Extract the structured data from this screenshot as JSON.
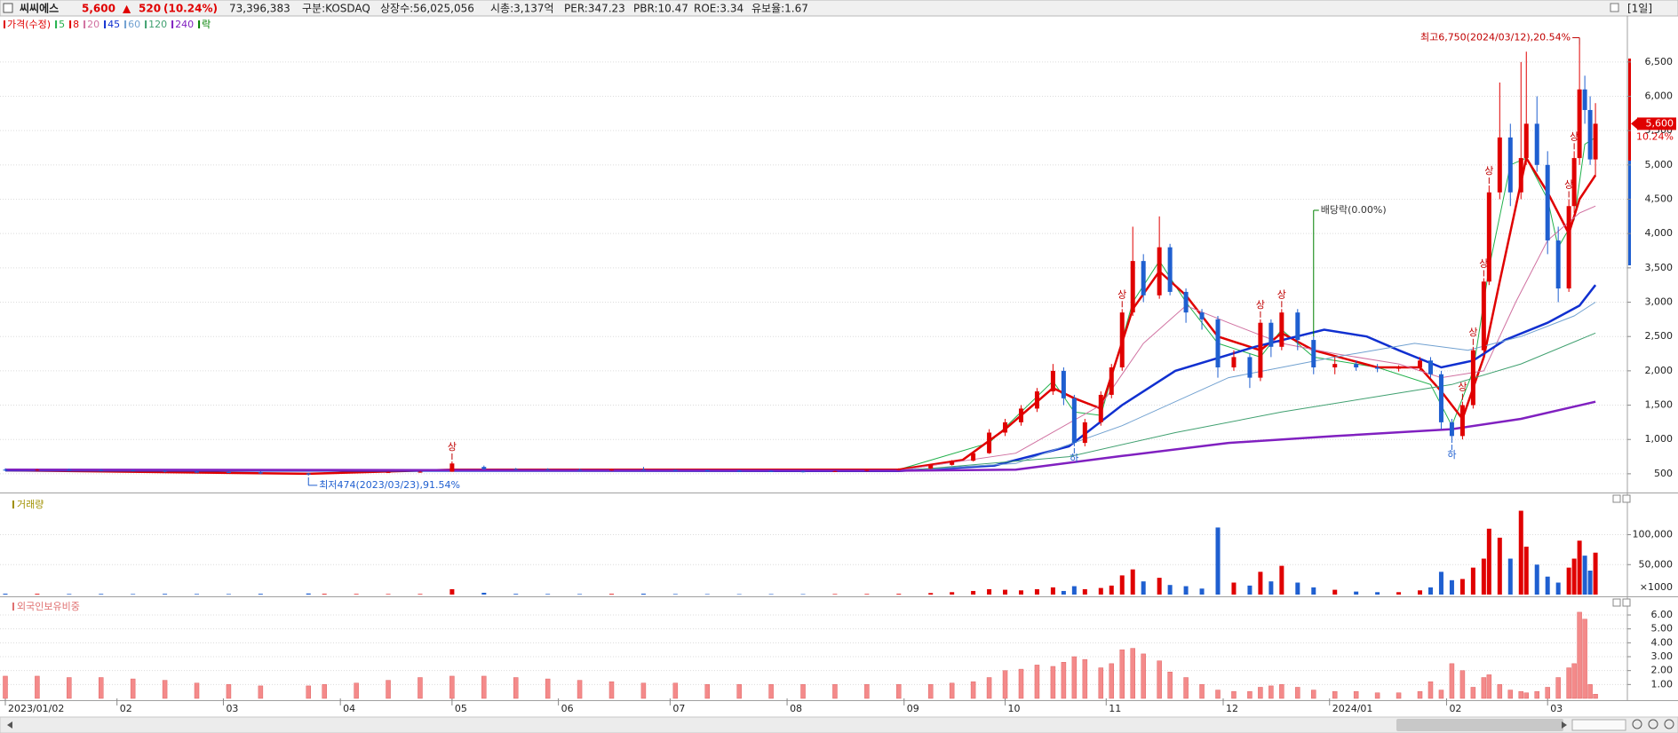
{
  "header": {
    "name": "씨씨에스",
    "price": "5,600",
    "change_arrow": "▲",
    "change": "520",
    "change_pct": "(10.24%)",
    "volume": "73,396,383",
    "market": "구분:KOSDAQ",
    "shares": "상장수:56,025,056",
    "market_cap": "시총:3,137억",
    "per": "PER:347.23",
    "pbr": "PBR:10.47",
    "roe": "ROE:3.34",
    "reserve_ratio": "유보율:1.67",
    "period": "[1일]",
    "price_tag_pct": "10.24%"
  },
  "chart_data": [
    {
      "type": "candlestick",
      "price_label": "가격(수정)",
      "color_up": "#e00000",
      "color_down": "#1f5fd0",
      "lock_legend": {
        "name": "락",
        "color": "#008000"
      },
      "xlim": [
        -1,
        305
      ],
      "ylim": [
        240,
        7170
      ],
      "grid": true,
      "yticks": [
        500,
        {
          "value": 1000,
          "label": "1,000"
        },
        {
          "value": 1500,
          "label": "1,500"
        },
        {
          "value": 2000,
          "label": "2,000"
        },
        {
          "value": 2500,
          "label": "2,500"
        },
        {
          "value": 3000,
          "label": "3,000"
        },
        {
          "value": 3500,
          "label": "3,500"
        },
        {
          "value": 4000,
          "label": "4,000"
        },
        {
          "value": 4500,
          "label": "4,500"
        },
        {
          "value": 5000,
          "label": "5,000"
        },
        {
          "value": 5500,
          "label": "5,500"
        },
        {
          "value": 6000,
          "label": "6,000"
        },
        {
          "value": 6500,
          "label": "6,500"
        }
      ],
      "xticks": [
        {
          "value": 0,
          "label": "2023/01/02"
        },
        {
          "value": 21,
          "label": "02"
        },
        {
          "value": 41,
          "label": "03"
        },
        {
          "value": 63,
          "label": "04"
        },
        {
          "value": 84,
          "label": "05"
        },
        {
          "value": 104,
          "label": "06"
        },
        {
          "value": 125,
          "label": "07"
        },
        {
          "value": 147,
          "label": "08"
        },
        {
          "value": 169,
          "label": "09"
        },
        {
          "value": 188,
          "label": "10"
        },
        {
          "value": 207,
          "label": "11"
        },
        {
          "value": 229,
          "label": "12"
        },
        {
          "value": 249,
          "label": "2024/01"
        },
        {
          "value": 271,
          "label": "02"
        },
        {
          "value": 290,
          "label": "03"
        }
      ],
      "x": [
        0,
        6,
        12,
        18,
        24,
        30,
        36,
        42,
        48,
        57,
        60,
        66,
        72,
        78,
        84,
        90,
        96,
        102,
        108,
        114,
        120,
        126,
        132,
        138,
        144,
        150,
        156,
        162,
        168,
        174,
        178,
        182,
        185,
        188,
        191,
        194,
        197,
        199,
        201,
        203,
        206,
        208,
        210,
        212,
        214,
        217,
        219,
        222,
        225,
        228,
        231,
        234,
        236,
        238,
        240,
        243,
        246,
        250,
        254,
        258,
        262,
        266,
        268,
        270,
        272,
        274,
        276,
        278,
        279,
        281,
        283,
        285,
        286,
        288,
        290,
        292,
        294,
        295,
        296,
        297,
        298,
        299
      ],
      "open": [
        560,
        550,
        560,
        555,
        550,
        545,
        530,
        525,
        520,
        505,
        500,
        515,
        520,
        525,
        530,
        600,
        570,
        565,
        560,
        555,
        560,
        555,
        550,
        545,
        540,
        535,
        530,
        540,
        555,
        575,
        630,
        690,
        800,
        1100,
        1250,
        1450,
        1700,
        2000,
        1600,
        950,
        1250,
        1650,
        2050,
        2850,
        3600,
        3100,
        3800,
        3150,
        2850,
        2750,
        2050,
        2200,
        1900,
        2700,
        2350,
        2850,
        2450,
        2050,
        2100,
        2050,
        2030,
        2050,
        2150,
        1950,
        1250,
        1050,
        1500,
        2300,
        3300,
        4600,
        5400,
        4600,
        5100,
        5600,
        5000,
        3900,
        3200,
        4400,
        5100,
        6100,
        5800,
        5080
      ],
      "high": [
        580,
        570,
        575,
        565,
        560,
        555,
        545,
        540,
        530,
        515,
        520,
        530,
        535,
        540,
        680,
        620,
        585,
        580,
        575,
        570,
        600,
        565,
        560,
        555,
        550,
        545,
        545,
        560,
        580,
        640,
        700,
        820,
        1150,
        1300,
        1500,
        1750,
        2100,
        2050,
        1650,
        1300,
        1700,
        2100,
        2900,
        4100,
        3700,
        4250,
        3850,
        3200,
        2900,
        2800,
        2300,
        2250,
        2750,
        2750,
        2900,
        2900,
        2500,
        2200,
        2150,
        2100,
        2080,
        2200,
        2200,
        2000,
        1300,
        1550,
        2350,
        3350,
        4700,
        6200,
        5600,
        6500,
        6650,
        6000,
        5200,
        4100,
        4500,
        5200,
        6750,
        6300,
        6000,
        5900
      ],
      "low": [
        540,
        540,
        545,
        540,
        535,
        520,
        515,
        510,
        495,
        474,
        495,
        505,
        510,
        515,
        530,
        560,
        555,
        550,
        545,
        545,
        550,
        540,
        535,
        530,
        525,
        520,
        525,
        535,
        550,
        570,
        620,
        680,
        790,
        1050,
        1200,
        1400,
        1650,
        1500,
        900,
        900,
        1200,
        1600,
        2000,
        2800,
        3000,
        3050,
        3100,
        2700,
        2600,
        1900,
        2000,
        1750,
        1850,
        2200,
        2300,
        2300,
        1950,
        1950,
        2000,
        1980,
        1990,
        2000,
        1900,
        1150,
        950,
        1000,
        1450,
        2250,
        3250,
        4500,
        4400,
        4500,
        5000,
        4900,
        3700,
        3000,
        3150,
        4300,
        5000,
        5600,
        5000,
        4850
      ],
      "close": [
        550,
        560,
        555,
        550,
        545,
        530,
        525,
        520,
        505,
        490,
        515,
        520,
        525,
        530,
        650,
        570,
        565,
        560,
        555,
        560,
        555,
        550,
        545,
        540,
        535,
        530,
        540,
        555,
        575,
        630,
        690,
        800,
        1100,
        1250,
        1450,
        1700,
        2000,
        1600,
        950,
        1250,
        1650,
        2050,
        2850,
        3600,
        3100,
        3800,
        3150,
        2850,
        2750,
        2050,
        2200,
        1900,
        2700,
        2350,
        2850,
        2450,
        2050,
        2100,
        2050,
        2030,
        2050,
        2150,
        1950,
        1250,
        1050,
        1500,
        2300,
        3300,
        4600,
        5400,
        4600,
        5100,
        5600,
        5000,
        3900,
        3200,
        4400,
        5100,
        6100,
        5800,
        5080,
        5600
      ],
      "series": [
        {
          "name": "5",
          "color": "#22b14c",
          "width": 1,
          "x": [
            168,
            185,
            197,
            201,
            206,
            212,
            217,
            222,
            228,
            236,
            240,
            246,
            258,
            268,
            272,
            276,
            279,
            283,
            286,
            290,
            292,
            295,
            297,
            299
          ],
          "values": [
            560,
            950,
            1850,
            1400,
            1350,
            3000,
            3600,
            3000,
            2400,
            2200,
            2600,
            2200,
            2050,
            1800,
            1200,
            2000,
            3500,
            5000,
            5100,
            4500,
            3800,
            4200,
            5300,
            5400
          ]
        },
        {
          "name": "8",
          "color": "#e00000",
          "width": 2.5,
          "x": [
            0,
            57,
            84,
            100,
            168,
            180,
            188,
            197,
            201,
            206,
            212,
            217,
            222,
            228,
            236,
            240,
            246,
            258,
            266,
            270,
            274,
            278,
            281,
            286,
            290,
            294,
            296,
            299
          ],
          "values": [
            550,
            500,
            560,
            560,
            560,
            700,
            1150,
            1750,
            1600,
            1450,
            2900,
            3450,
            3100,
            2500,
            2300,
            2550,
            2300,
            2050,
            2050,
            1700,
            1300,
            2200,
            3300,
            5100,
            4600,
            4000,
            4500,
            4850
          ]
        },
        {
          "name": "20",
          "color": "#d070a0",
          "width": 1,
          "x": [
            0,
            168,
            190,
            206,
            214,
            222,
            230,
            240,
            250,
            262,
            270,
            278,
            284,
            290,
            296,
            299
          ],
          "values": [
            550,
            550,
            800,
            1500,
            2400,
            2950,
            2700,
            2400,
            2250,
            2100,
            1900,
            2000,
            3000,
            3900,
            4300,
            4400
          ]
        },
        {
          "name": "45",
          "color": "#1030d0",
          "width": 2.5,
          "x": [
            0,
            168,
            186,
            200,
            210,
            220,
            235,
            248,
            256,
            262,
            270,
            276,
            282,
            290,
            296,
            299
          ],
          "values": [
            550,
            540,
            620,
            900,
            1500,
            2000,
            2350,
            2600,
            2500,
            2300,
            2050,
            2150,
            2450,
            2700,
            2950,
            3250
          ]
        },
        {
          "name": "60",
          "color": "#70a0d0",
          "width": 1,
          "x": [
            0,
            168,
            190,
            210,
            230,
            250,
            265,
            275,
            285,
            295,
            299
          ],
          "values": [
            550,
            540,
            650,
            1200,
            1900,
            2200,
            2400,
            2300,
            2500,
            2800,
            3000
          ]
        },
        {
          "name": "120",
          "color": "#40a070",
          "width": 1,
          "x": [
            0,
            168,
            200,
            220,
            240,
            260,
            272,
            285,
            299
          ],
          "values": [
            560,
            540,
            750,
            1100,
            1400,
            1650,
            1800,
            2100,
            2550
          ]
        },
        {
          "name": "240",
          "color": "#8020c0",
          "width": 2.5,
          "x": [
            0,
            168,
            190,
            210,
            230,
            250,
            272,
            285,
            299
          ],
          "values": [
            560,
            545,
            560,
            760,
            950,
            1050,
            1150,
            1300,
            1550
          ]
        }
      ],
      "limit_up": {
        "label": "상",
        "x": [
          84,
          210,
          236,
          240,
          274,
          276,
          278,
          279,
          294,
          295
        ]
      },
      "limit_down": {
        "label": "하",
        "x": [
          201,
          272
        ]
      },
      "annotations": [
        {
          "text": "최고6,750(2024/03/12),20.54%",
          "x": 296,
          "y": 6750,
          "color": "#c00000"
        },
        {
          "text": "최저474(2023/03/23),91.54%",
          "x": 57,
          "y": 474,
          "color": "#1f5fd0"
        }
      ],
      "ex_dividend": {
        "text": "배당락(0.00%)",
        "x": 246,
        "color": "#008000"
      }
    },
    {
      "type": "bar",
      "title": "거래량",
      "unit_label": "×1000",
      "ylim": [
        0,
        166000
      ],
      "grid": true,
      "yticks": [
        {
          "value": 50000,
          "label": "50,000"
        },
        {
          "value": 100000,
          "label": "100,000"
        }
      ],
      "values": [
        1500,
        1200,
        1000,
        1100,
        900,
        1200,
        1000,
        900,
        1300,
        1800,
        1100,
        900,
        800,
        900,
        9000,
        3000,
        1200,
        1000,
        900,
        1100,
        1500,
        900,
        800,
        700,
        800,
        700,
        800,
        900,
        1200,
        2500,
        4000,
        6000,
        9000,
        8000,
        7000,
        9000,
        12000,
        6000,
        14000,
        9000,
        11000,
        15000,
        32000,
        42000,
        22000,
        28000,
        16000,
        14000,
        10000,
        112000,
        20000,
        15000,
        38000,
        22000,
        48000,
        20000,
        12000,
        8000,
        5000,
        4000,
        4000,
        7000,
        12000,
        38000,
        24000,
        26000,
        45000,
        60000,
        110000,
        95000,
        60000,
        140000,
        80000,
        50000,
        30000,
        20000,
        45000,
        60000,
        90000,
        65000,
        40000,
        70000
      ]
    },
    {
      "type": "bar",
      "title": "외국인보유비중",
      "color": "#f48a8a",
      "ylim": [
        0,
        7.15
      ],
      "grid": true,
      "yticks": [
        {
          "value": 1,
          "label": "1.00"
        },
        {
          "value": 2,
          "label": "2.00"
        },
        {
          "value": 3,
          "label": "3.00"
        },
        {
          "value": 4,
          "label": "4.00"
        },
        {
          "value": 5,
          "label": "5.00"
        },
        {
          "value": 6,
          "label": "6.00"
        }
      ],
      "values": [
        1.6,
        1.6,
        1.5,
        1.5,
        1.4,
        1.3,
        1.1,
        1.0,
        0.9,
        0.9,
        1.0,
        1.1,
        1.3,
        1.5,
        1.6,
        1.6,
        1.5,
        1.4,
        1.3,
        1.2,
        1.1,
        1.1,
        1.0,
        1.0,
        1.0,
        1.0,
        1.0,
        1.0,
        1.0,
        1.0,
        1.1,
        1.2,
        1.5,
        2.0,
        2.1,
        2.4,
        2.3,
        2.6,
        3.0,
        2.8,
        2.2,
        2.5,
        3.5,
        3.6,
        3.2,
        2.7,
        1.9,
        1.5,
        1.0,
        0.6,
        0.5,
        0.5,
        0.8,
        0.9,
        1.0,
        0.8,
        0.6,
        0.5,
        0.5,
        0.4,
        0.4,
        0.5,
        1.2,
        0.6,
        2.5,
        2.0,
        0.8,
        1.5,
        1.7,
        1.0,
        0.6,
        0.5,
        0.4,
        0.5,
        0.8,
        1.5,
        2.2,
        2.5,
        6.2,
        5.7,
        1.0,
        0.3
      ]
    }
  ]
}
